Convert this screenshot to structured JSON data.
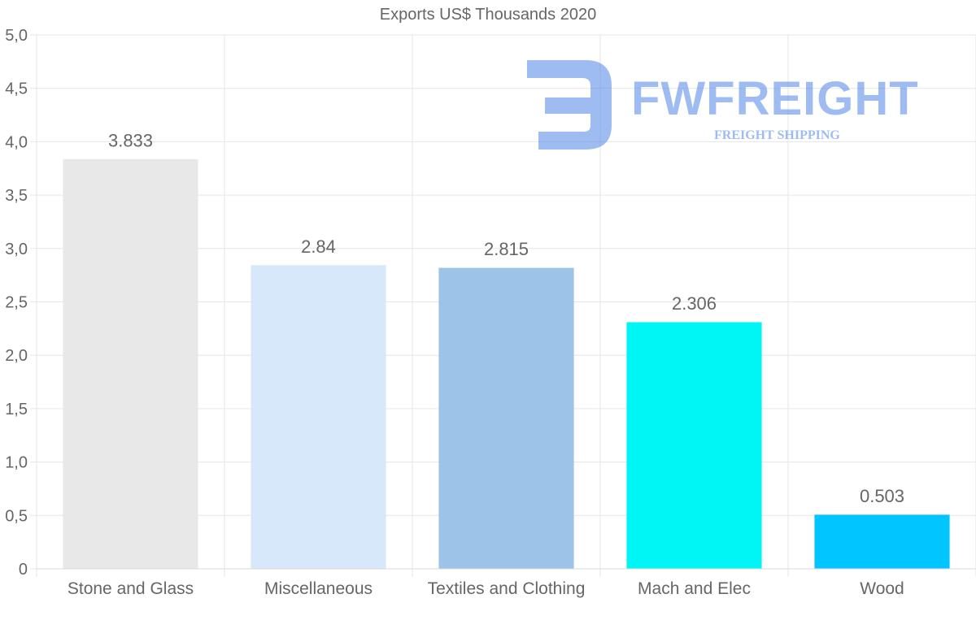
{
  "chart_data": {
    "type": "bar",
    "title": "Exports US$ Thousands 2020",
    "categories": [
      "Stone and Glass",
      "Miscellaneous",
      "Textiles and Clothing",
      "Mach and Elec",
      "Wood"
    ],
    "values": [
      3.833,
      2.84,
      2.815,
      2.306,
      0.503
    ],
    "value_labels": [
      "3.833",
      "2.84",
      "2.815",
      "2.306",
      "0.503"
    ],
    "bar_colors": [
      "#e8e8e8",
      "#d6e8fa",
      "#9dc4e8",
      "#00f5f5",
      "#00c5ff"
    ],
    "ylim": [
      0,
      5
    ],
    "yticks": [
      0,
      0.5,
      1,
      1.5,
      2,
      2.5,
      3,
      3.5,
      4,
      4.5,
      5
    ],
    "ytick_labels": [
      "0",
      "0,5",
      "1,0",
      "1,5",
      "2,0",
      "2,5",
      "3,0",
      "3,5",
      "4,0",
      "4,5",
      "5,0"
    ],
    "xlabel": "",
    "ylabel": "",
    "grid": true
  },
  "watermark": {
    "name": "FWFREIGHT",
    "tagline": "FREIGHT SHIPPING",
    "color": "#4f86e6"
  }
}
